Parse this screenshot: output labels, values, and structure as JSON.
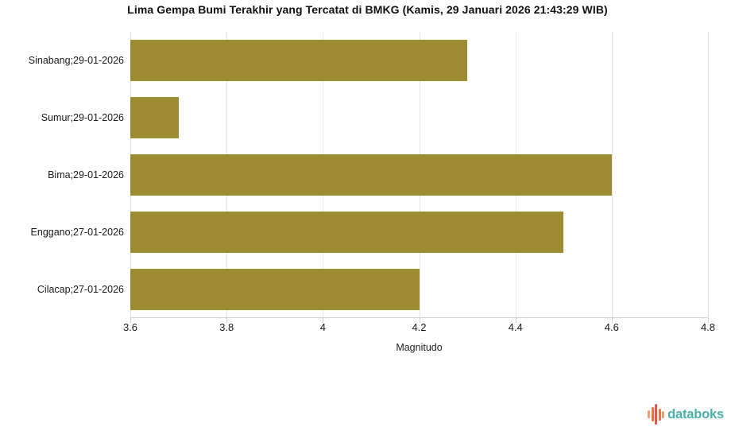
{
  "title": "Lima Gempa Bumi Terakhir yang Tercatat di BMKG (Kamis, 29 Januari 2026 21:43:29 WIB)",
  "chart_data": {
    "type": "bar",
    "orientation": "horizontal",
    "categories": [
      "Sinabang;29-01-2026",
      "Sumur;29-01-2026",
      "Bima;29-01-2026",
      "Enggano;27-01-2026",
      "Cilacap;27-01-2026"
    ],
    "values": [
      4.3,
      3.7,
      4.6,
      4.5,
      4.2
    ],
    "title": "Lima Gempa Bumi Terakhir yang Tercatat di BMKG (Kamis, 29 Januari 2026 21:43:29 WIB)",
    "xlabel": "Magnitudo",
    "ylabel": "",
    "xlim": [
      3.6,
      4.8
    ],
    "xticks": [
      3.6,
      3.8,
      4.0,
      4.2,
      4.4,
      4.6,
      4.8
    ],
    "xtick_labels": [
      "3.6",
      "3.8",
      "4",
      "4.2",
      "4.4",
      "4.6",
      "4.8"
    ],
    "grid": true,
    "legend": false,
    "bar_color": "#9e8c35",
    "gridline_color": "#e4e4e4",
    "axis_line_color": "#d3d3d3"
  },
  "branding": {
    "logo_text": "databoks",
    "logo_color": "#4ab0a9",
    "icon_bar_colors": [
      "#f4996b",
      "#ed7147",
      "#e2574c",
      "#ed7147",
      "#f4996b"
    ],
    "icon_bar_heights": [
      10,
      18,
      26,
      15,
      9
    ]
  }
}
